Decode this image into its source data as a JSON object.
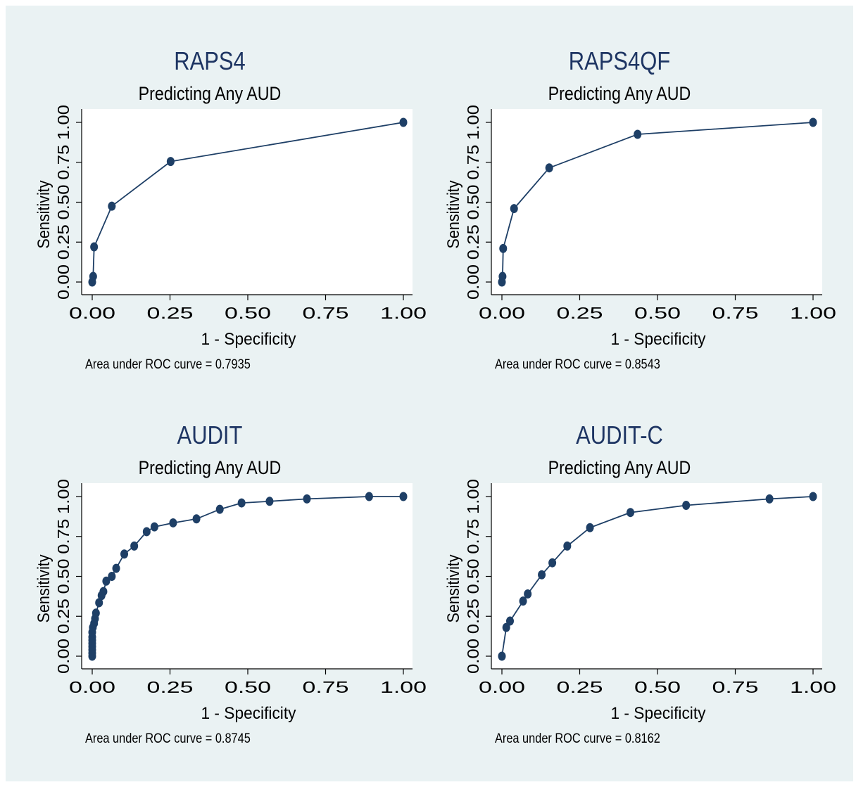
{
  "chart_data": [
    {
      "type": "line",
      "title": "RAPS4",
      "subtitle": "Predicting Any AUD",
      "xlabel": "1 - Specificity",
      "ylabel": "Sensitivity",
      "xlim": [
        0,
        1
      ],
      "ylim": [
        0,
        1
      ],
      "xticks": [
        "0.00",
        "0.25",
        "0.50",
        "0.75",
        "1.00"
      ],
      "yticks": [
        "0.00",
        "0.25",
        "0.50",
        "0.75",
        "1.00"
      ],
      "grid": false,
      "color": "#1e3f66",
      "note": "Area under ROC curve = 0.7935",
      "x": [
        0.0,
        0.003,
        0.006,
        0.063,
        0.252,
        1.0
      ],
      "y": [
        0.0,
        0.035,
        0.22,
        0.475,
        0.755,
        1.0
      ]
    },
    {
      "type": "line",
      "title": "RAPS4QF",
      "subtitle": "Predicting Any AUD",
      "xlabel": "1 - Specificity",
      "ylabel": "Sensitivity",
      "xlim": [
        0,
        1
      ],
      "ylim": [
        0,
        1
      ],
      "xticks": [
        "0.00",
        "0.25",
        "0.50",
        "0.75",
        "1.00"
      ],
      "yticks": [
        "0.00",
        "0.25",
        "0.50",
        "0.75",
        "1.00"
      ],
      "grid": false,
      "color": "#1e3f66",
      "note": "Area under ROC curve = 0.8543",
      "x": [
        0.0,
        0.002,
        0.004,
        0.039,
        0.152,
        0.436,
        1.0
      ],
      "y": [
        0.0,
        0.035,
        0.21,
        0.46,
        0.715,
        0.925,
        1.0
      ]
    },
    {
      "type": "line",
      "title": "AUDIT",
      "subtitle": "Predicting Any AUD",
      "xlabel": "1 - Specificity",
      "ylabel": "Sensitivity",
      "xlim": [
        0,
        1
      ],
      "ylim": [
        0,
        1
      ],
      "xticks": [
        "0.00",
        "0.25",
        "0.50",
        "0.75",
        "1.00"
      ],
      "yticks": [
        "0.00",
        "0.25",
        "0.50",
        "0.75",
        "1.00"
      ],
      "grid": false,
      "color": "#1e3f66",
      "note": "Area under ROC curve = 0.8745",
      "x": [
        0.0,
        0.0,
        0.0,
        0.0,
        0.0,
        0.0,
        0.0,
        0.0,
        0.002,
        0.006,
        0.009,
        0.012,
        0.022,
        0.03,
        0.036,
        0.045,
        0.063,
        0.077,
        0.103,
        0.135,
        0.175,
        0.2,
        0.26,
        0.335,
        0.41,
        0.48,
        0.57,
        0.69,
        0.89,
        1.0
      ],
      "y": [
        0.0,
        0.02,
        0.04,
        0.06,
        0.08,
        0.1,
        0.12,
        0.15,
        0.18,
        0.205,
        0.235,
        0.27,
        0.335,
        0.38,
        0.405,
        0.47,
        0.5,
        0.55,
        0.64,
        0.69,
        0.78,
        0.81,
        0.835,
        0.86,
        0.92,
        0.96,
        0.97,
        0.985,
        1.0,
        1.0
      ]
    },
    {
      "type": "line",
      "title": "AUDIT-C",
      "subtitle": "Predicting Any AUD",
      "xlabel": "1 - Specificity",
      "ylabel": "Sensitivity",
      "xlim": [
        0,
        1
      ],
      "ylim": [
        0,
        1
      ],
      "xticks": [
        "0.00",
        "0.25",
        "0.50",
        "0.75",
        "1.00"
      ],
      "yticks": [
        "0.00",
        "0.25",
        "0.50",
        "0.75",
        "1.00"
      ],
      "grid": false,
      "color": "#1e3f66",
      "note": "Area under ROC curve = 0.8162",
      "x": [
        0.0,
        0.014,
        0.026,
        0.068,
        0.083,
        0.128,
        0.162,
        0.21,
        0.283,
        0.413,
        0.592,
        0.86,
        1.0
      ],
      "y": [
        0.0,
        0.18,
        0.22,
        0.345,
        0.39,
        0.51,
        0.585,
        0.69,
        0.805,
        0.9,
        0.945,
        0.985,
        1.0
      ]
    }
  ]
}
